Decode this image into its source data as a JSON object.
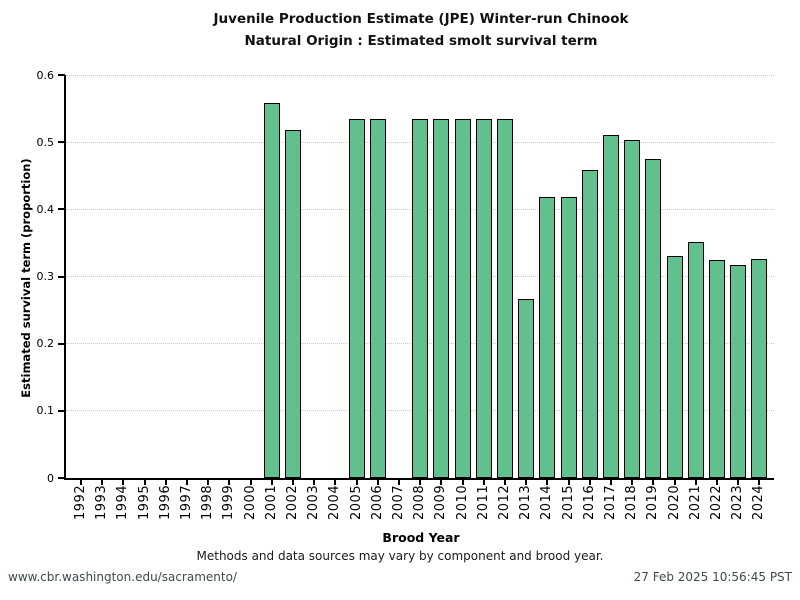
{
  "chart_data": {
    "type": "bar",
    "title_lines": [
      "Juvenile Production Estimate (JPE) Winter-run Chinook",
      "Natural Origin : Estimated smolt survival term"
    ],
    "xlabel": "Brood Year",
    "ylabel": "Estimated survival term (proportion)",
    "ylim": [
      0,
      0.6
    ],
    "yticks": [
      0,
      0.1,
      0.2,
      0.3,
      0.4,
      0.5,
      0.6
    ],
    "ytick_labels": [
      "0",
      "0.1",
      "0.2",
      "0.3",
      "0.4",
      "0.5",
      "0.6"
    ],
    "grid": "horizontal-dotted",
    "legend": "none",
    "bar_color": "#62c08f",
    "bar_edge_color": "#000000",
    "categories": [
      "1992",
      "1993",
      "1994",
      "1995",
      "1996",
      "1997",
      "1998",
      "1999",
      "2000",
      "2001",
      "2002",
      "2003",
      "2004",
      "2005",
      "2006",
      "2007",
      "2008",
      "2009",
      "2010",
      "2011",
      "2012",
      "2013",
      "2014",
      "2015",
      "2016",
      "2017",
      "2018",
      "2019",
      "2020",
      "2021",
      "2022",
      "2023",
      "2024"
    ],
    "values": [
      null,
      null,
      null,
      null,
      null,
      null,
      null,
      null,
      null,
      0.559,
      0.518,
      null,
      null,
      0.535,
      0.535,
      null,
      0.535,
      0.535,
      0.535,
      0.535,
      0.535,
      0.267,
      0.419,
      0.419,
      0.458,
      0.511,
      0.503,
      0.475,
      0.33,
      0.352,
      0.324,
      0.317,
      0.326
    ]
  },
  "footnote": "Methods and data sources may vary by component and brood year.",
  "footer": {
    "url": "www.cbr.washington.edu/sacramento/",
    "timestamp": "27 Feb 2025 10:56:45 PST"
  }
}
